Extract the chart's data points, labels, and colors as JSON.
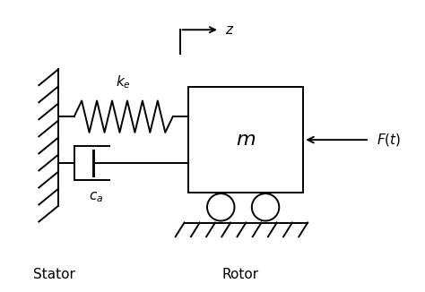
{
  "bg_color": "#ffffff",
  "line_color": "#000000",
  "figsize": [
    4.74,
    3.26
  ],
  "dpi": 100,
  "label_stator": "Stator",
  "label_rotor": "Rotor",
  "label_mass": "$m$",
  "label_spring": "$k_e$",
  "label_damper": "$c_a$",
  "label_force": "$F(t)$",
  "label_z": "$z$"
}
